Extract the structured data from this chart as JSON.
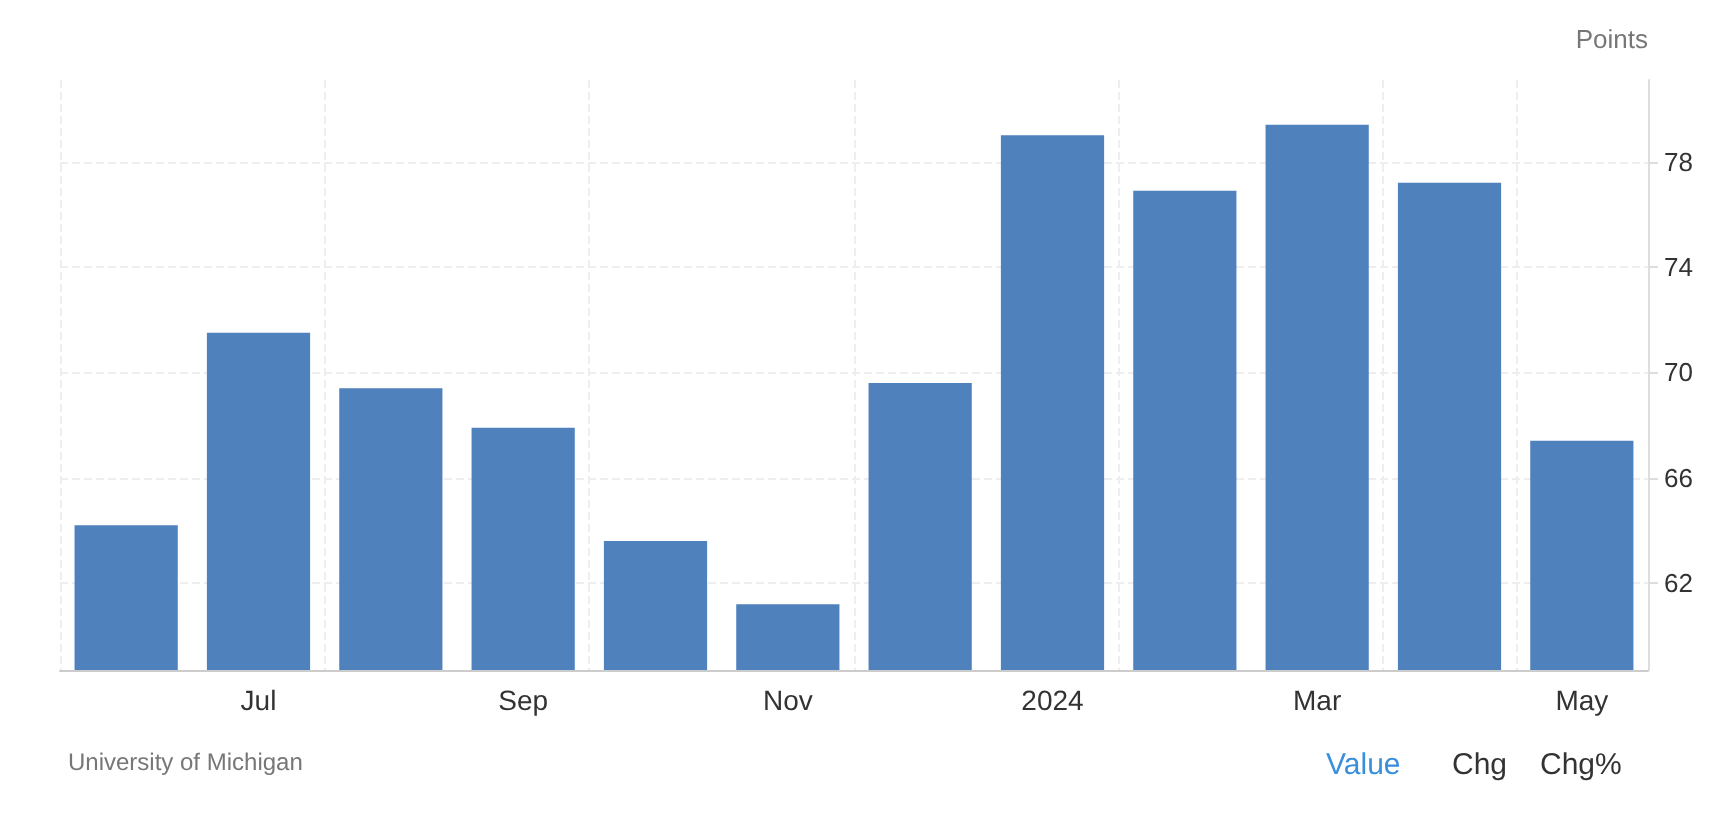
{
  "chart_data": {
    "type": "bar",
    "ylabel": "Points",
    "categories": [
      null,
      "Jul",
      null,
      "Sep",
      null,
      "Nov",
      null,
      "2024",
      null,
      "Mar",
      null,
      "May"
    ],
    "values": [
      64.2,
      71.5,
      69.4,
      67.9,
      63.6,
      61.2,
      69.6,
      79.0,
      76.9,
      79.4,
      77.2,
      67.4
    ],
    "color": "#4f81bd",
    "ylim": [
      58.7,
      81.1
    ],
    "yticks": [
      62,
      66,
      70,
      74,
      78
    ],
    "grid": true,
    "annotations": [
      "University of Michigan",
      "Value",
      "Chg",
      "Chg%"
    ]
  }
}
